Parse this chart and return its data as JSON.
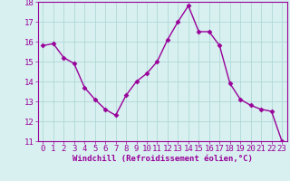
{
  "x": [
    0,
    1,
    2,
    3,
    4,
    5,
    6,
    7,
    8,
    9,
    10,
    11,
    12,
    13,
    14,
    15,
    16,
    17,
    18,
    19,
    20,
    21,
    22,
    23
  ],
  "y": [
    15.8,
    15.9,
    15.2,
    14.9,
    13.7,
    13.1,
    12.6,
    12.3,
    13.3,
    14.0,
    14.4,
    15.0,
    16.1,
    17.0,
    17.8,
    16.5,
    16.5,
    15.8,
    13.9,
    13.1,
    12.8,
    12.6,
    12.5,
    11.0
  ],
  "line_color": "#990099",
  "marker": "D",
  "marker_size": 2.5,
  "linewidth": 1.0,
  "bg_color": "#d8f0f0",
  "grid_color": "#b0d8d8",
  "xlabel": "Windchill (Refroidissement éolien,°C)",
  "xlabel_color": "#990099",
  "tick_color": "#990099",
  "ylim_min": 11,
  "ylim_max": 18,
  "yticks": [
    11,
    12,
    13,
    14,
    15,
    16,
    17,
    18
  ],
  "xticks": [
    0,
    1,
    2,
    3,
    4,
    5,
    6,
    7,
    8,
    9,
    10,
    11,
    12,
    13,
    14,
    15,
    16,
    17,
    18,
    19,
    20,
    21,
    22,
    23
  ],
  "xlabel_fontsize": 6.5,
  "tick_fontsize": 6.5,
  "spine_color": "#990099"
}
